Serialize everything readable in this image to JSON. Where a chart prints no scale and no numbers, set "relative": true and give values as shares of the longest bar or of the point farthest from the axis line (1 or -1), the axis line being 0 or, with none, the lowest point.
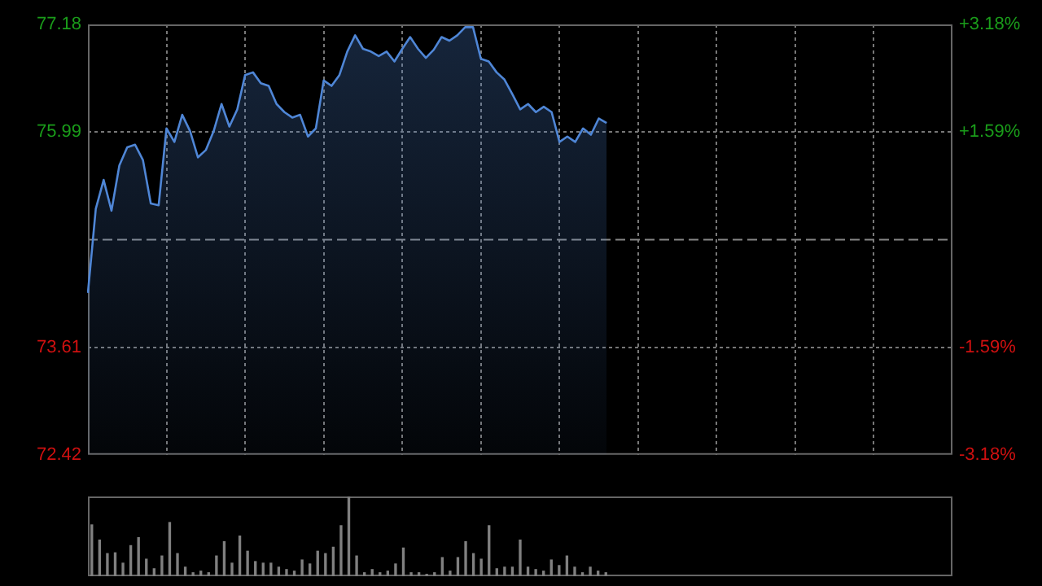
{
  "chart_data": [
    {
      "type": "area",
      "categories": [
        null,
        null,
        null,
        null,
        null,
        null,
        null,
        null,
        null,
        null,
        null,
        null,
        null,
        null,
        null,
        null,
        null,
        null,
        null,
        null,
        null,
        null,
        null,
        null,
        null,
        null,
        null,
        null,
        null,
        null,
        null,
        null,
        null,
        null,
        null,
        null,
        null,
        null,
        null,
        null,
        null,
        null,
        null,
        null,
        null,
        null,
        null,
        null,
        null,
        null,
        null,
        null,
        null,
        null,
        null,
        null,
        null,
        null,
        null,
        null,
        null,
        null,
        null,
        null,
        null,
        null,
        null,
        null,
        null,
        null,
        null,
        null,
        null,
        null,
        null,
        null,
        null,
        null,
        null,
        null,
        null,
        null,
        null,
        null,
        null,
        null,
        null,
        null,
        null,
        null,
        null,
        null,
        null,
        null,
        null,
        null,
        null,
        null,
        null,
        null,
        null,
        null,
        null,
        null,
        null,
        null,
        null,
        null,
        null,
        null,
        null
      ],
      "series": [
        {
          "color": "#4f86d6",
          "values": [
            74.21,
            75.14,
            75.46,
            75.12,
            75.62,
            75.82,
            75.85,
            75.68,
            75.2,
            75.18,
            76.03,
            75.88,
            76.18,
            76.0,
            75.71,
            75.79,
            76.0,
            76.3,
            76.05,
            76.24,
            76.62,
            76.65,
            76.53,
            76.5,
            76.3,
            76.21,
            76.15,
            76.18,
            75.94,
            76.03,
            76.56,
            76.5,
            76.62,
            76.88,
            77.06,
            76.91,
            76.88,
            76.83,
            76.88,
            76.77,
            76.91,
            77.04,
            76.91,
            76.81,
            76.9,
            77.04,
            77.0,
            77.06,
            77.15,
            77.15,
            76.8,
            76.77,
            76.65,
            76.57,
            76.41,
            76.24,
            76.3,
            76.21,
            76.27,
            76.21,
            75.88,
            75.94,
            75.88,
            76.03,
            75.96,
            76.14,
            76.09,
            null,
            null,
            null,
            null,
            null,
            null,
            null,
            null,
            null,
            null,
            null,
            null,
            null,
            null,
            null,
            null,
            null,
            null,
            null,
            null,
            null,
            null,
            null,
            null,
            null,
            null,
            null,
            null,
            null,
            null,
            null,
            null,
            null,
            null,
            null,
            null,
            null,
            null,
            null,
            null,
            null,
            null,
            null,
            null
          ]
        }
      ],
      "ylim": [
        72.42,
        77.18
      ],
      "yticks": [
        77.18,
        75.99,
        73.61,
        72.42
      ],
      "y2lim": [
        -3.18,
        3.18
      ],
      "y2ticks": [
        {
          "value": 3.18,
          "label": "+3.18%"
        },
        {
          "value": 1.59,
          "label": "+1.59%"
        },
        {
          "value": -1.59,
          "label": "-1.59%"
        },
        {
          "value": -3.18,
          "label": "-3.18%"
        }
      ],
      "ref_lines": [
        {
          "axis": "y",
          "value": 74.8,
          "line_style": "dashed",
          "color": "#888888"
        }
      ],
      "grid": true,
      "tick_labels": "y",
      "marker": "none"
    },
    {
      "type": "bar",
      "relative": true,
      "color": "#808080",
      "categories": [
        null,
        null,
        null,
        null,
        null,
        null,
        null,
        null,
        null,
        null,
        null,
        null,
        null,
        null,
        null,
        null,
        null,
        null,
        null,
        null,
        null,
        null,
        null,
        null,
        null,
        null,
        null,
        null,
        null,
        null,
        null,
        null,
        null,
        null,
        null,
        null,
        null,
        null,
        null,
        null,
        null,
        null,
        null,
        null,
        null,
        null,
        null,
        null,
        null,
        null,
        null,
        null,
        null,
        null,
        null,
        null,
        null,
        null,
        null,
        null,
        null,
        null,
        null,
        null,
        null,
        null,
        null,
        null,
        null,
        null,
        null,
        null,
        null,
        null,
        null,
        null,
        null,
        null,
        null,
        null,
        null,
        null,
        null,
        null,
        null,
        null,
        null,
        null,
        null,
        null,
        null,
        null,
        null,
        null,
        null,
        null,
        null,
        null,
        null,
        null,
        null,
        null,
        null,
        null,
        null,
        null,
        null,
        null,
        null,
        null,
        null
      ],
      "values": [
        0.65,
        0.46,
        0.29,
        0.3,
        0.17,
        0.39,
        0.49,
        0.22,
        0.1,
        0.26,
        0.68,
        0.29,
        0.12,
        0.05,
        0.07,
        0.05,
        0.26,
        0.44,
        0.17,
        0.51,
        0.32,
        0.19,
        0.17,
        0.17,
        0.12,
        0.09,
        0.07,
        0.21,
        0.16,
        0.32,
        0.29,
        0.37,
        0.64,
        1.0,
        0.26,
        0.05,
        0.09,
        0.05,
        0.07,
        0.16,
        0.36,
        0.05,
        0.05,
        0.03,
        0.05,
        0.24,
        0.07,
        0.24,
        0.44,
        0.29,
        0.22,
        0.64,
        0.1,
        0.12,
        0.12,
        0.46,
        0.12,
        0.09,
        0.07,
        0.21,
        0.14,
        0.26,
        0.12,
        0.05,
        0.12,
        0.07,
        0.05,
        null,
        null,
        null,
        null,
        null,
        null,
        null,
        null,
        null,
        null,
        null,
        null,
        null,
        null,
        null,
        null,
        null,
        null,
        null,
        null,
        null,
        null,
        null,
        null,
        null,
        null,
        null,
        null,
        null,
        null,
        null,
        null,
        null,
        null,
        null,
        null,
        null,
        null,
        null,
        null,
        null,
        null,
        null,
        null
      ],
      "tick_labels": false
    }
  ]
}
